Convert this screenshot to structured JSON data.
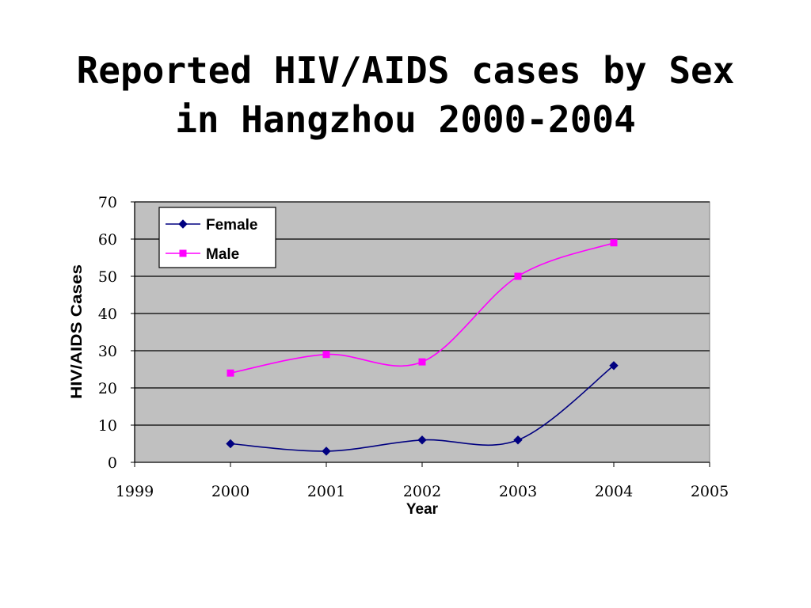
{
  "slide": {
    "title_line1": "Reported HIV/AIDS cases by Sex",
    "title_line2": "in Hangzhou 2000-2004"
  },
  "chart_data": {
    "type": "line",
    "title": "",
    "xlabel": "Year",
    "ylabel": "HIV/AIDS Cases",
    "xlim": [
      1999,
      2005
    ],
    "ylim": [
      0,
      70
    ],
    "x_ticks": [
      1999,
      2000,
      2001,
      2002,
      2003,
      2004,
      2005
    ],
    "y_ticks": [
      0,
      10,
      20,
      30,
      40,
      50,
      60,
      70
    ],
    "grid": "horizontal",
    "smoothed": true,
    "plot_background": "#c0c0c0",
    "legend_position": "top-left",
    "x": [
      2000,
      2001,
      2002,
      2003,
      2004
    ],
    "series": [
      {
        "name": "Female",
        "values": [
          5,
          3,
          6,
          6,
          26
        ],
        "color": "#000080",
        "marker": "diamond"
      },
      {
        "name": "Male",
        "values": [
          24,
          29,
          27,
          50,
          59
        ],
        "color": "#ff00ff",
        "marker": "square"
      }
    ]
  }
}
